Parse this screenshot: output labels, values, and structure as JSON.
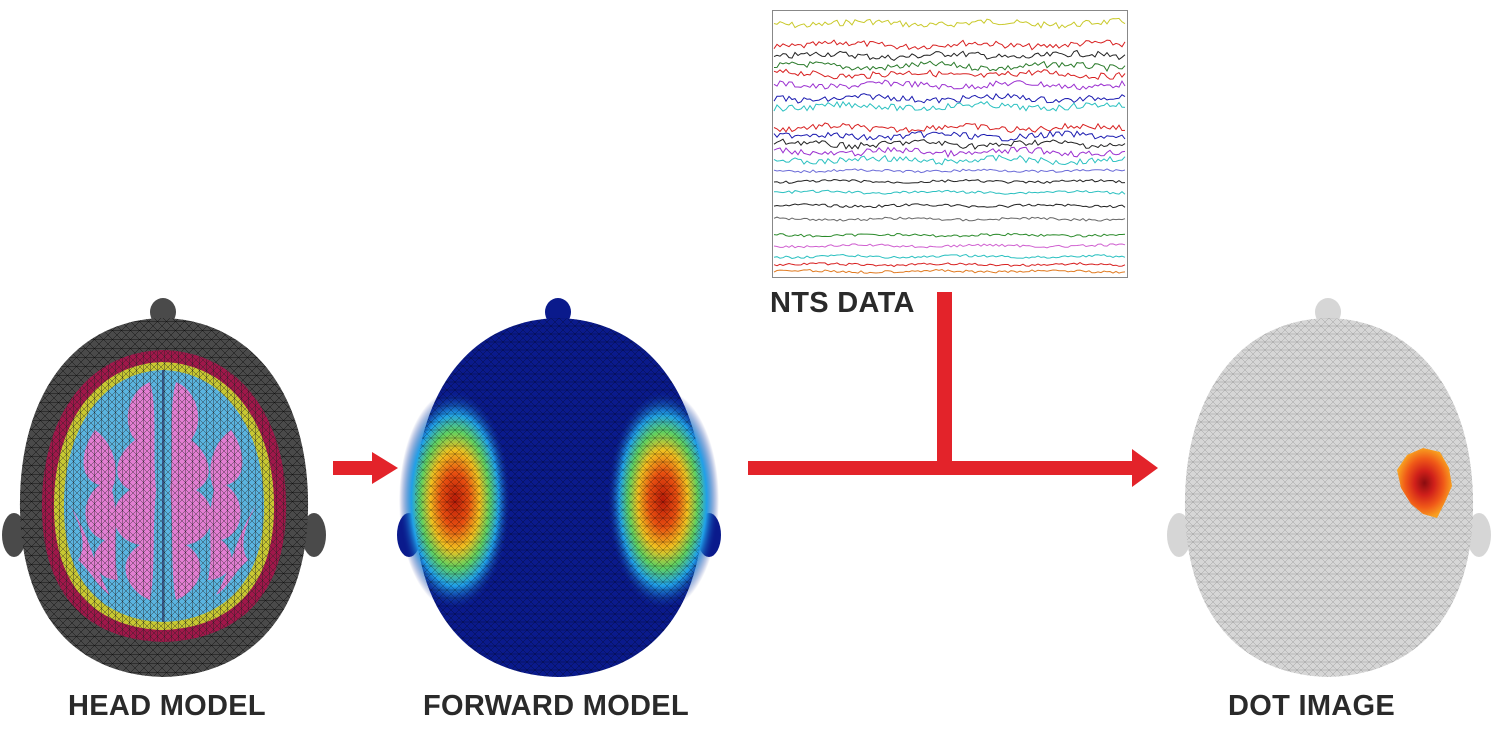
{
  "labels": {
    "head_model": "HEAD MODEL",
    "forward_model": "FORWARD MODEL",
    "nts_data": "NTS DATA",
    "dot_image": "DOT IMAGE"
  },
  "colors": {
    "arrow": "#e3232a",
    "scalp_dark": "#4a4a4a",
    "csf_red": "#a0174a",
    "csf_yellow": "#c8c832",
    "gray_matter": "#e27ed2",
    "white_matter": "#5ab4e0",
    "forward_bg": "#0a1a8c",
    "dot_gray": "#d6d6d6",
    "dot_activation": "#e8401a"
  },
  "nts_traces": [
    {
      "color": "#c9c92a",
      "level": 0.05
    },
    {
      "color": "#d82020",
      "level": 0.13
    },
    {
      "color": "#222222",
      "level": 0.17
    },
    {
      "color": "#2a7a2a",
      "level": 0.21
    },
    {
      "color": "#d82020",
      "level": 0.24
    },
    {
      "color": "#9b30d0",
      "level": 0.28
    },
    {
      "color": "#1a1ab0",
      "level": 0.33
    },
    {
      "color": "#2ac0c0",
      "level": 0.36
    },
    {
      "color": "#d82020",
      "level": 0.44
    },
    {
      "color": "#1a1ab0",
      "level": 0.47
    },
    {
      "color": "#222222",
      "level": 0.5
    },
    {
      "color": "#9b30d0",
      "level": 0.53
    },
    {
      "color": "#2ac0c0",
      "level": 0.56
    },
    {
      "color": "#6c6cd8",
      "level": 0.6
    },
    {
      "color": "#222222",
      "level": 0.64
    },
    {
      "color": "#2ac0c0",
      "level": 0.68
    },
    {
      "color": "#222222",
      "level": 0.73
    },
    {
      "color": "#666666",
      "level": 0.78
    },
    {
      "color": "#2a8a2a",
      "level": 0.84
    },
    {
      "color": "#d060d0",
      "level": 0.88
    },
    {
      "color": "#2ac0c0",
      "level": 0.92
    },
    {
      "color": "#d82020",
      "level": 0.95
    },
    {
      "color": "#e07a20",
      "level": 0.975
    }
  ]
}
